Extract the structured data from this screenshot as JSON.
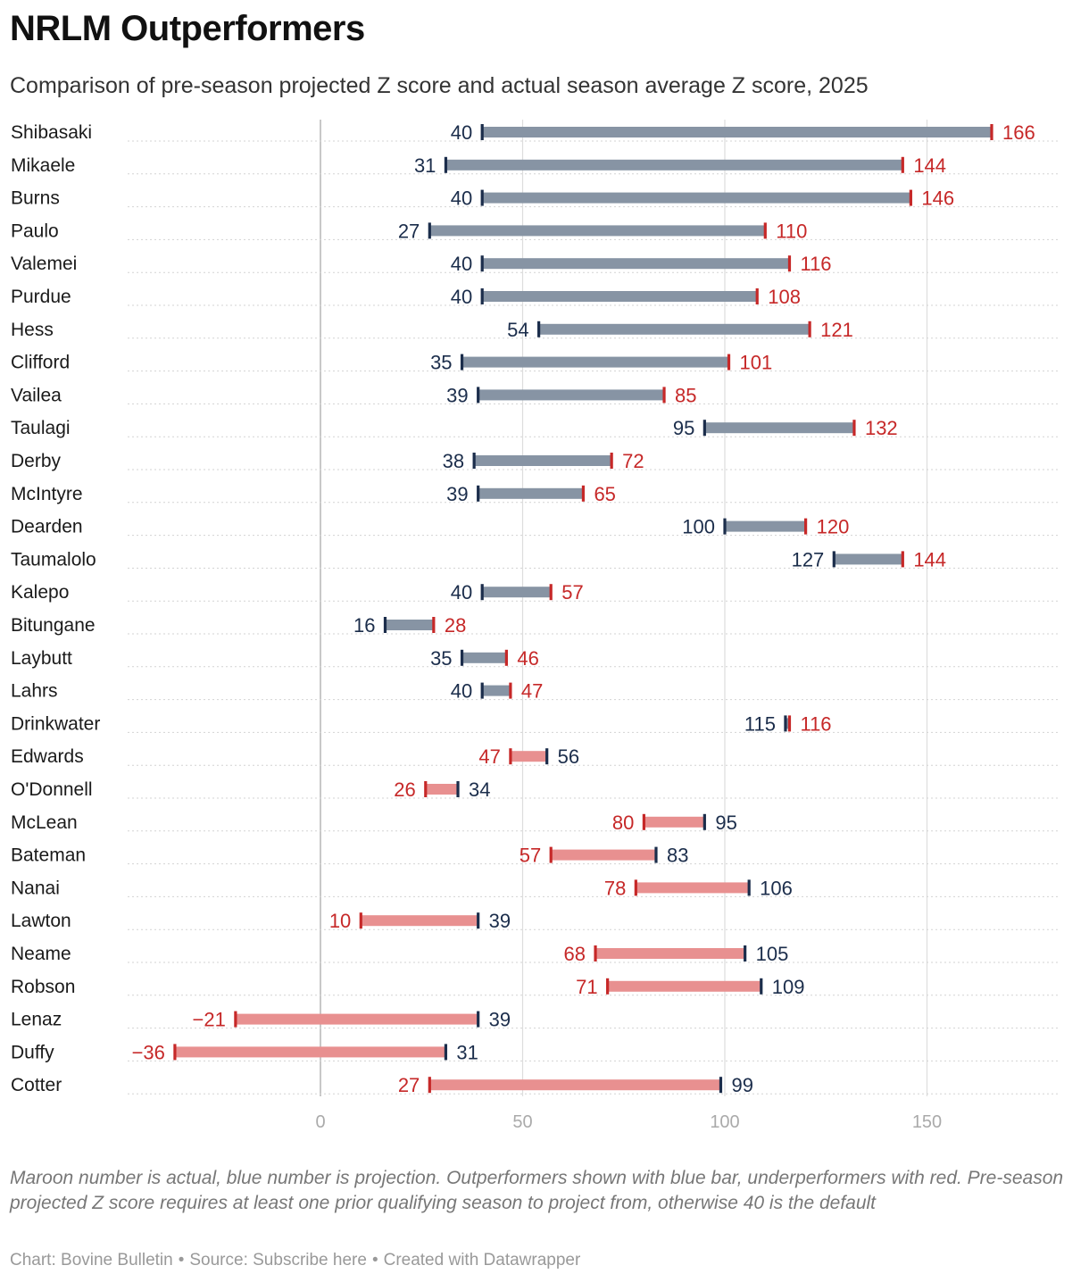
{
  "header": {
    "title": "NRLM Outperformers",
    "subtitle": "Comparison of pre-season projected Z score and actual season average Z score, 2025"
  },
  "colors": {
    "projection": "#1b2d4b",
    "actual": "#c62828",
    "outperform_bar": "#8794a4",
    "underperform_bar": "#e89090",
    "gridline": "#dddddd",
    "zero_line": "#bbbbbb",
    "dotted_rule": "#d3d3d3"
  },
  "chart_data": {
    "type": "dumbbell",
    "title": "NRLM Outperformers",
    "xlabel": "",
    "ylabel": "",
    "xlim": [
      -47,
      180
    ],
    "xticks": [
      0,
      50,
      100,
      150
    ],
    "series_names": [
      "Pre-season projected Z score",
      "Actual season average Z score"
    ],
    "players": [
      "Shibasaki",
      "Mikaele",
      "Burns",
      "Paulo",
      "Valemei",
      "Purdue",
      "Hess",
      "Clifford",
      "Vailea",
      "Taulagi",
      "Derby",
      "McIntyre",
      "Dearden",
      "Taumalolo",
      "Kalepo",
      "Bitungane",
      "Laybutt",
      "Lahrs",
      "Drinkwater",
      "Edwards",
      "O'Donnell",
      "McLean",
      "Bateman",
      "Nanai",
      "Lawton",
      "Neame",
      "Robson",
      "Lenaz",
      "Duffy",
      "Cotter"
    ],
    "projected": [
      40,
      31,
      40,
      27,
      40,
      40,
      54,
      35,
      39,
      95,
      38,
      39,
      100,
      127,
      40,
      16,
      35,
      40,
      115,
      56,
      34,
      95,
      83,
      106,
      39,
      105,
      109,
      39,
      31,
      99
    ],
    "actual": [
      166,
      144,
      146,
      110,
      116,
      108,
      121,
      101,
      85,
      132,
      72,
      65,
      120,
      144,
      57,
      28,
      46,
      47,
      116,
      47,
      26,
      80,
      57,
      78,
      10,
      68,
      71,
      -21,
      -36,
      27
    ]
  },
  "notes": "Maroon number is actual, blue number is projection. Outperformers shown with blue bar, underperformers with red. Pre-season projected Z score requires at least one prior qualifying season to project from, otherwise 40 is the default",
  "footer": {
    "chart_credit": "Chart: Bovine Bulletin",
    "source": "Source: Subscribe here",
    "tool": "Created with Datawrapper",
    "separator": "•"
  }
}
